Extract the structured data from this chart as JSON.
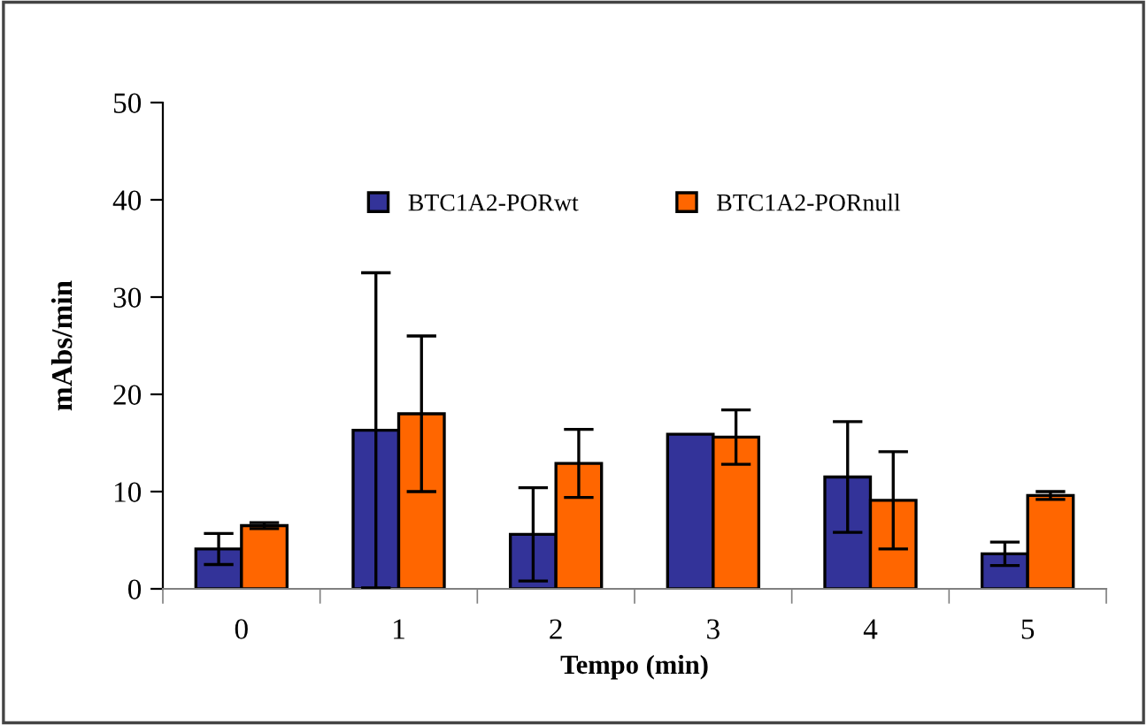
{
  "chart_data": {
    "type": "bar",
    "xlabel": "Tempo (min)",
    "ylabel": "mAbs/min",
    "categories": [
      "0",
      "1",
      "2",
      "3",
      "4",
      "5"
    ],
    "series": [
      {
        "name": "BTC1A2-PORwt",
        "color": "#333399",
        "values": [
          4.1,
          16.3,
          5.6,
          15.9,
          11.5,
          3.6
        ],
        "errors": [
          1.6,
          16.2,
          4.8,
          null,
          5.7,
          1.2
        ]
      },
      {
        "name": "BTC1A2-PORnull",
        "color": "#ff6600",
        "values": [
          6.5,
          18.0,
          12.9,
          15.6,
          9.1,
          9.6
        ],
        "errors": [
          0.3,
          8.0,
          3.5,
          2.8,
          5.0,
          0.4
        ]
      }
    ],
    "ylim": [
      0,
      50
    ],
    "yticks": [
      0,
      10,
      20,
      30,
      40,
      50
    ],
    "grid": false,
    "legend": "top"
  }
}
